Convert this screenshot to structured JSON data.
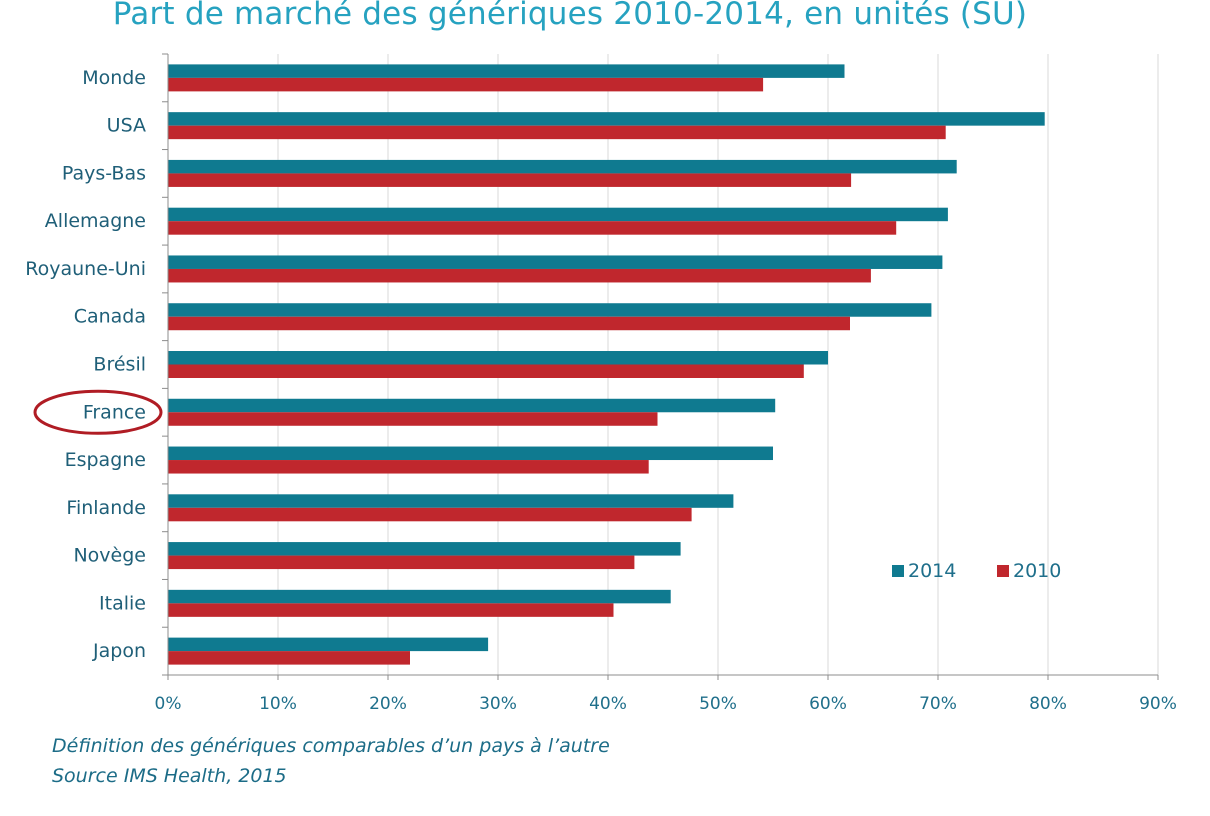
{
  "chart_data": {
    "type": "bar",
    "orientation": "horizontal",
    "title": "Part de marché des génériques 2010-2014, en unités (SU)",
    "categories": [
      "Monde",
      "USA",
      "Pays-Bas",
      "Allemagne",
      "Royaune-Uni",
      "Canada",
      "Brésil",
      "France",
      "Espagne",
      "Finlande",
      "Novège",
      "Italie",
      "Japon"
    ],
    "series": [
      {
        "name": "2014",
        "color": "#0f7a90",
        "values": [
          61.5,
          79.7,
          71.7,
          70.9,
          70.4,
          69.4,
          60.0,
          55.2,
          55.0,
          51.4,
          46.6,
          45.7,
          29.1
        ]
      },
      {
        "name": "2010",
        "color": "#c0272d",
        "values": [
          54.1,
          70.7,
          62.1,
          66.2,
          63.9,
          62.0,
          57.8,
          44.5,
          43.7,
          47.6,
          42.4,
          40.5,
          22.0
        ]
      }
    ],
    "xlim": [
      0,
      90
    ],
    "xticks": [
      "0%",
      "10%",
      "20%",
      "30%",
      "40%",
      "50%",
      "60%",
      "70%",
      "80%",
      "90%"
    ],
    "legend_position": "lower-right",
    "highlight": {
      "category": "France",
      "color": "#b01c24"
    },
    "grid": true
  },
  "footnotes": [
    "Définition  des génériques comparables d’un pays à l’autre",
    "Source IMS Health, 2015"
  ]
}
